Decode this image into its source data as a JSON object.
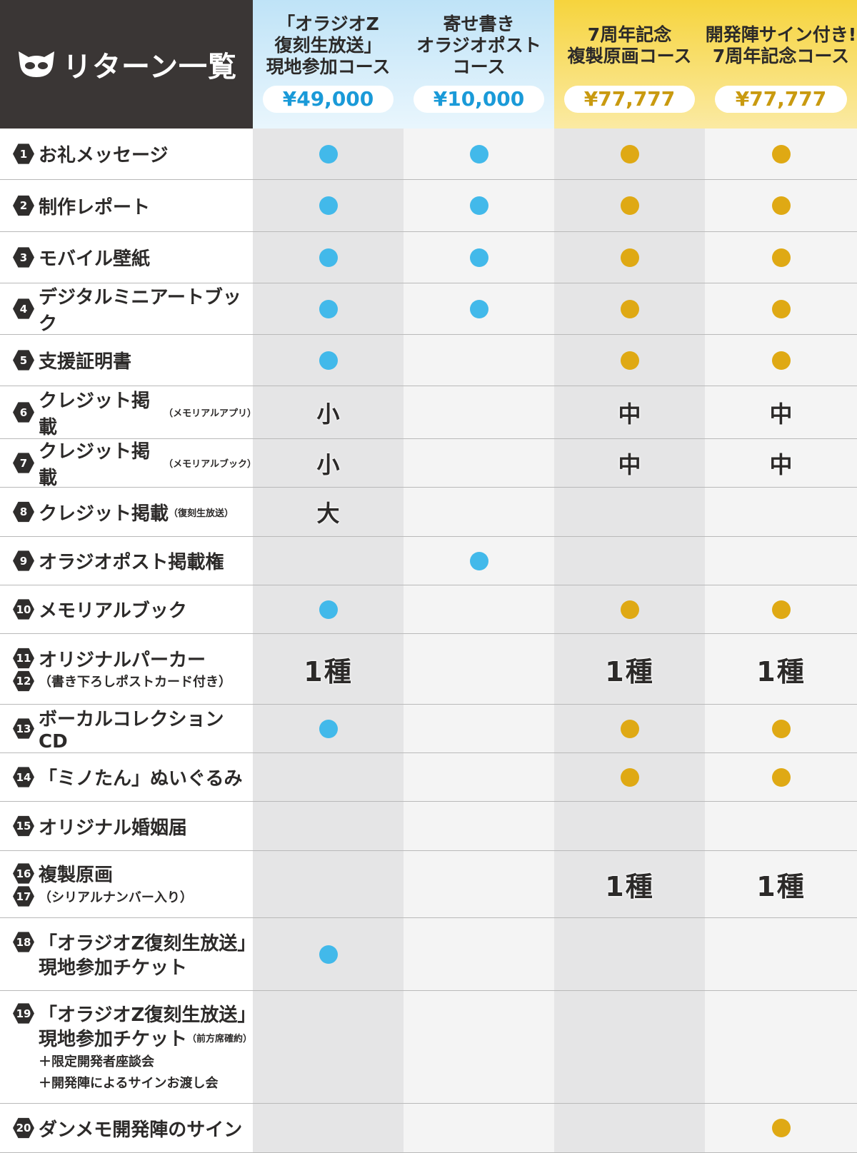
{
  "header": {
    "title": "リターン一覧",
    "courses": [
      {
        "name_lines": [
          "「オラジオZ",
          "復刻生放送」",
          "現地参加コース"
        ],
        "price": "¥49,000",
        "theme": "blue"
      },
      {
        "name_lines": [
          "寄せ書き",
          "オラジオポスト",
          "コース"
        ],
        "price": "¥10,000",
        "theme": "blue"
      },
      {
        "name_lines": [
          "7周年記念",
          "複製原画コース"
        ],
        "price": "¥77,777",
        "theme": "gold"
      },
      {
        "name_lines": [
          "開発陣サイン付き!",
          "7周年記念コース"
        ],
        "price": "¥77,777",
        "theme": "gold"
      }
    ]
  },
  "colors": {
    "blue_dot": "#42b9ea",
    "gold_dot": "#dfa914",
    "header_dark": "#3a3635"
  },
  "rows": [
    {
      "nums": [
        "1"
      ],
      "lines": [
        {
          "text": "お礼メッセージ",
          "small": ""
        }
      ],
      "cells": [
        "dot",
        "dot",
        "dot",
        "dot"
      ]
    },
    {
      "nums": [
        "2"
      ],
      "lines": [
        {
          "text": "制作レポート",
          "small": ""
        }
      ],
      "cells": [
        "dot",
        "dot",
        "dot",
        "dot"
      ]
    },
    {
      "nums": [
        "3"
      ],
      "lines": [
        {
          "text": "モバイル壁紙",
          "small": ""
        }
      ],
      "cells": [
        "dot",
        "dot",
        "dot",
        "dot"
      ]
    },
    {
      "nums": [
        "4"
      ],
      "lines": [
        {
          "text": "デジタルミニアートブック",
          "small": ""
        }
      ],
      "cells": [
        "dot",
        "dot",
        "dot",
        "dot"
      ]
    },
    {
      "nums": [
        "5"
      ],
      "lines": [
        {
          "text": "支援証明書",
          "small": ""
        }
      ],
      "cells": [
        "dot",
        "",
        "dot",
        "dot"
      ]
    },
    {
      "nums": [
        "6"
      ],
      "lines": [
        {
          "text": "クレジット掲載",
          "small": "（メモリアルアプリ）"
        }
      ],
      "cells": [
        "小",
        "",
        "中",
        "中"
      ]
    },
    {
      "nums": [
        "7"
      ],
      "lines": [
        {
          "text": "クレジット掲載",
          "small": "（メモリアルブック）"
        }
      ],
      "cells": [
        "小",
        "",
        "中",
        "中"
      ]
    },
    {
      "nums": [
        "8"
      ],
      "lines": [
        {
          "text": "クレジット掲載",
          "small": "（復刻生放送）"
        }
      ],
      "cells": [
        "大",
        "",
        "",
        ""
      ]
    },
    {
      "nums": [
        "9"
      ],
      "lines": [
        {
          "text": "オラジオポスト掲載権",
          "small": ""
        }
      ],
      "cells": [
        "",
        "dot",
        "",
        ""
      ]
    },
    {
      "nums": [
        "10"
      ],
      "lines": [
        {
          "text": "メモリアルブック",
          "small": ""
        }
      ],
      "cells": [
        "dot",
        "",
        "dot",
        "dot"
      ]
    },
    {
      "nums": [
        "11",
        "12"
      ],
      "lines": [
        {
          "text": "オリジナルパーカー",
          "small": ""
        },
        {
          "text": "",
          "sub": "（書き下ろしポストカード付き）"
        }
      ],
      "cells": [
        "1種",
        "",
        "1種",
        "1種"
      ]
    },
    {
      "nums": [
        "13"
      ],
      "lines": [
        {
          "text": "ボーカルコレクションCD",
          "small": ""
        }
      ],
      "cells": [
        "dot",
        "",
        "dot",
        "dot"
      ]
    },
    {
      "nums": [
        "14"
      ],
      "lines": [
        {
          "text": "「ミノたん」ぬいぐるみ",
          "small": ""
        }
      ],
      "cells": [
        "",
        "",
        "dot",
        "dot"
      ]
    },
    {
      "nums": [
        "15"
      ],
      "lines": [
        {
          "text": "オリジナル婚姻届",
          "small": ""
        }
      ],
      "cells": [
        "",
        "",
        "",
        ""
      ]
    },
    {
      "nums": [
        "16",
        "17"
      ],
      "lines": [
        {
          "text": "複製原画",
          "small": ""
        },
        {
          "text": "",
          "sub": "（シリアルナンバー入り）"
        }
      ],
      "cells": [
        "",
        "",
        "1種",
        "1種"
      ]
    },
    {
      "nums": [
        "18"
      ],
      "lines": [
        {
          "text": "「オラジオZ復刻生放送」",
          "small": ""
        },
        {
          "text": "現地参加チケット",
          "small": ""
        }
      ],
      "cells": [
        "dot",
        "",
        "",
        ""
      ]
    },
    {
      "nums": [
        "19"
      ],
      "lines": [
        {
          "text": "「オラジオZ復刻生放送」",
          "small": ""
        },
        {
          "text": "現地参加チケット",
          "small": "（前方席確約）"
        },
        {
          "text": "",
          "sub": "＋限定開発者座談会"
        },
        {
          "text": "",
          "sub": "＋開発陣によるサインお渡し会"
        }
      ],
      "cells": [
        "",
        "",
        "",
        ""
      ]
    },
    {
      "nums": [
        "20"
      ],
      "lines": [
        {
          "text": "ダンメモ開発陣のサイン",
          "small": ""
        }
      ],
      "cells": [
        "",
        "",
        "",
        "dot"
      ]
    }
  ]
}
